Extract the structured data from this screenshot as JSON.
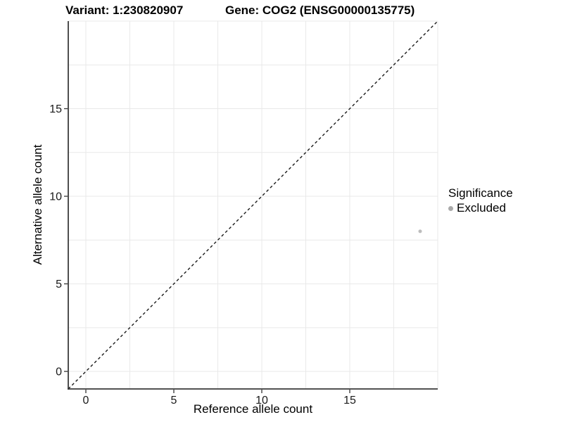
{
  "chart_data": {
    "type": "scatter",
    "title_left": "Variant: 1:230820907",
    "title_right": "Gene: COG2 (ENSG00000135775)",
    "xlabel": "Reference allele count",
    "ylabel": "Alternative allele count",
    "xlim": [
      -1,
      20
    ],
    "ylim": [
      -1,
      20
    ],
    "xticks": [
      0,
      5,
      10,
      15
    ],
    "yticks": [
      0,
      5,
      10,
      15
    ],
    "grid": {
      "show": true,
      "min": 0,
      "max": 20,
      "step": 2.5,
      "color": "#e9e9e9"
    },
    "identity_line": {
      "linetype": "dashed",
      "slope": 1,
      "intercept": 0,
      "from": [
        -1,
        -1
      ],
      "to": [
        20,
        20
      ],
      "color": "#1a1a1a"
    },
    "series": [
      {
        "name": "Excluded",
        "color": "#bdbdbd",
        "points": [
          {
            "x": 19,
            "y": 8
          }
        ]
      }
    ],
    "legend": {
      "title": "Significance",
      "position": "right",
      "items": [
        {
          "label": "Excluded",
          "color": "#a9a9a9"
        }
      ]
    }
  },
  "colors": {
    "background": "#ffffff",
    "axis_line": "#3a3a3a",
    "tick_mark": "#333333",
    "tick_label": "#1a1a1a"
  }
}
